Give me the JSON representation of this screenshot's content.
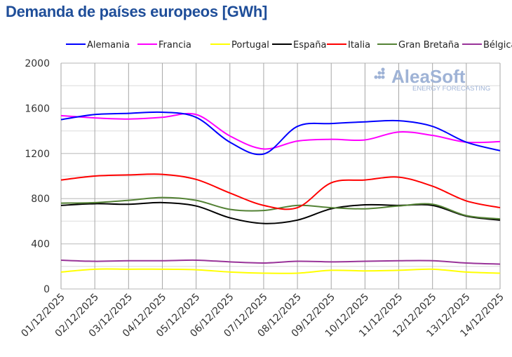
{
  "chart_data": {
    "type": "line",
    "title": "Demanda de países europeos [GWh]",
    "xlabel": "",
    "ylabel": "",
    "ylim": [
      0,
      2000
    ],
    "yticks": [
      0,
      400,
      800,
      1200,
      1600,
      2000
    ],
    "grid": true,
    "legend_placement": "top",
    "categories": [
      "01/12/2025",
      "02/12/2025",
      "03/12/2025",
      "04/12/2025",
      "05/12/2025",
      "06/12/2025",
      "07/12/2025",
      "08/12/2025",
      "09/12/2025",
      "10/12/2025",
      "11/12/2025",
      "12/12/2025",
      "13/12/2025",
      "14/12/2025"
    ],
    "series": [
      {
        "name": "Alemania",
        "color": "#0000ff",
        "values": [
          1500,
          1545,
          1555,
          1565,
          1520,
          1300,
          1195,
          1440,
          1465,
          1480,
          1490,
          1440,
          1300,
          1225
        ]
      },
      {
        "name": "Francia",
        "color": "#ff00ff",
        "values": [
          1535,
          1515,
          1505,
          1520,
          1545,
          1355,
          1240,
          1310,
          1325,
          1320,
          1390,
          1360,
          1300,
          1305
        ]
      },
      {
        "name": "Portugal",
        "color": "#ffff00",
        "values": [
          150,
          175,
          175,
          175,
          170,
          150,
          140,
          140,
          165,
          160,
          165,
          175,
          150,
          140
        ]
      },
      {
        "name": "España",
        "color": "#000000",
        "values": [
          740,
          755,
          750,
          765,
          735,
          630,
          580,
          610,
          710,
          745,
          740,
          740,
          645,
          610
        ]
      },
      {
        "name": "Italia",
        "color": "#ff0000",
        "values": [
          965,
          1000,
          1010,
          1015,
          970,
          850,
          740,
          720,
          940,
          965,
          990,
          910,
          780,
          720
        ]
      },
      {
        "name": "Gran Bretaña",
        "color": "#548235",
        "values": [
          760,
          765,
          785,
          810,
          785,
          705,
          695,
          740,
          720,
          710,
          735,
          750,
          650,
          620
        ]
      },
      {
        "name": "Bélgica",
        "color": "#993399",
        "values": [
          255,
          245,
          250,
          250,
          255,
          240,
          230,
          245,
          240,
          245,
          250,
          250,
          230,
          220
        ]
      }
    ]
  },
  "watermark": {
    "brand": "AleaSoft",
    "tagline": "ENERGY FORECASTING"
  }
}
